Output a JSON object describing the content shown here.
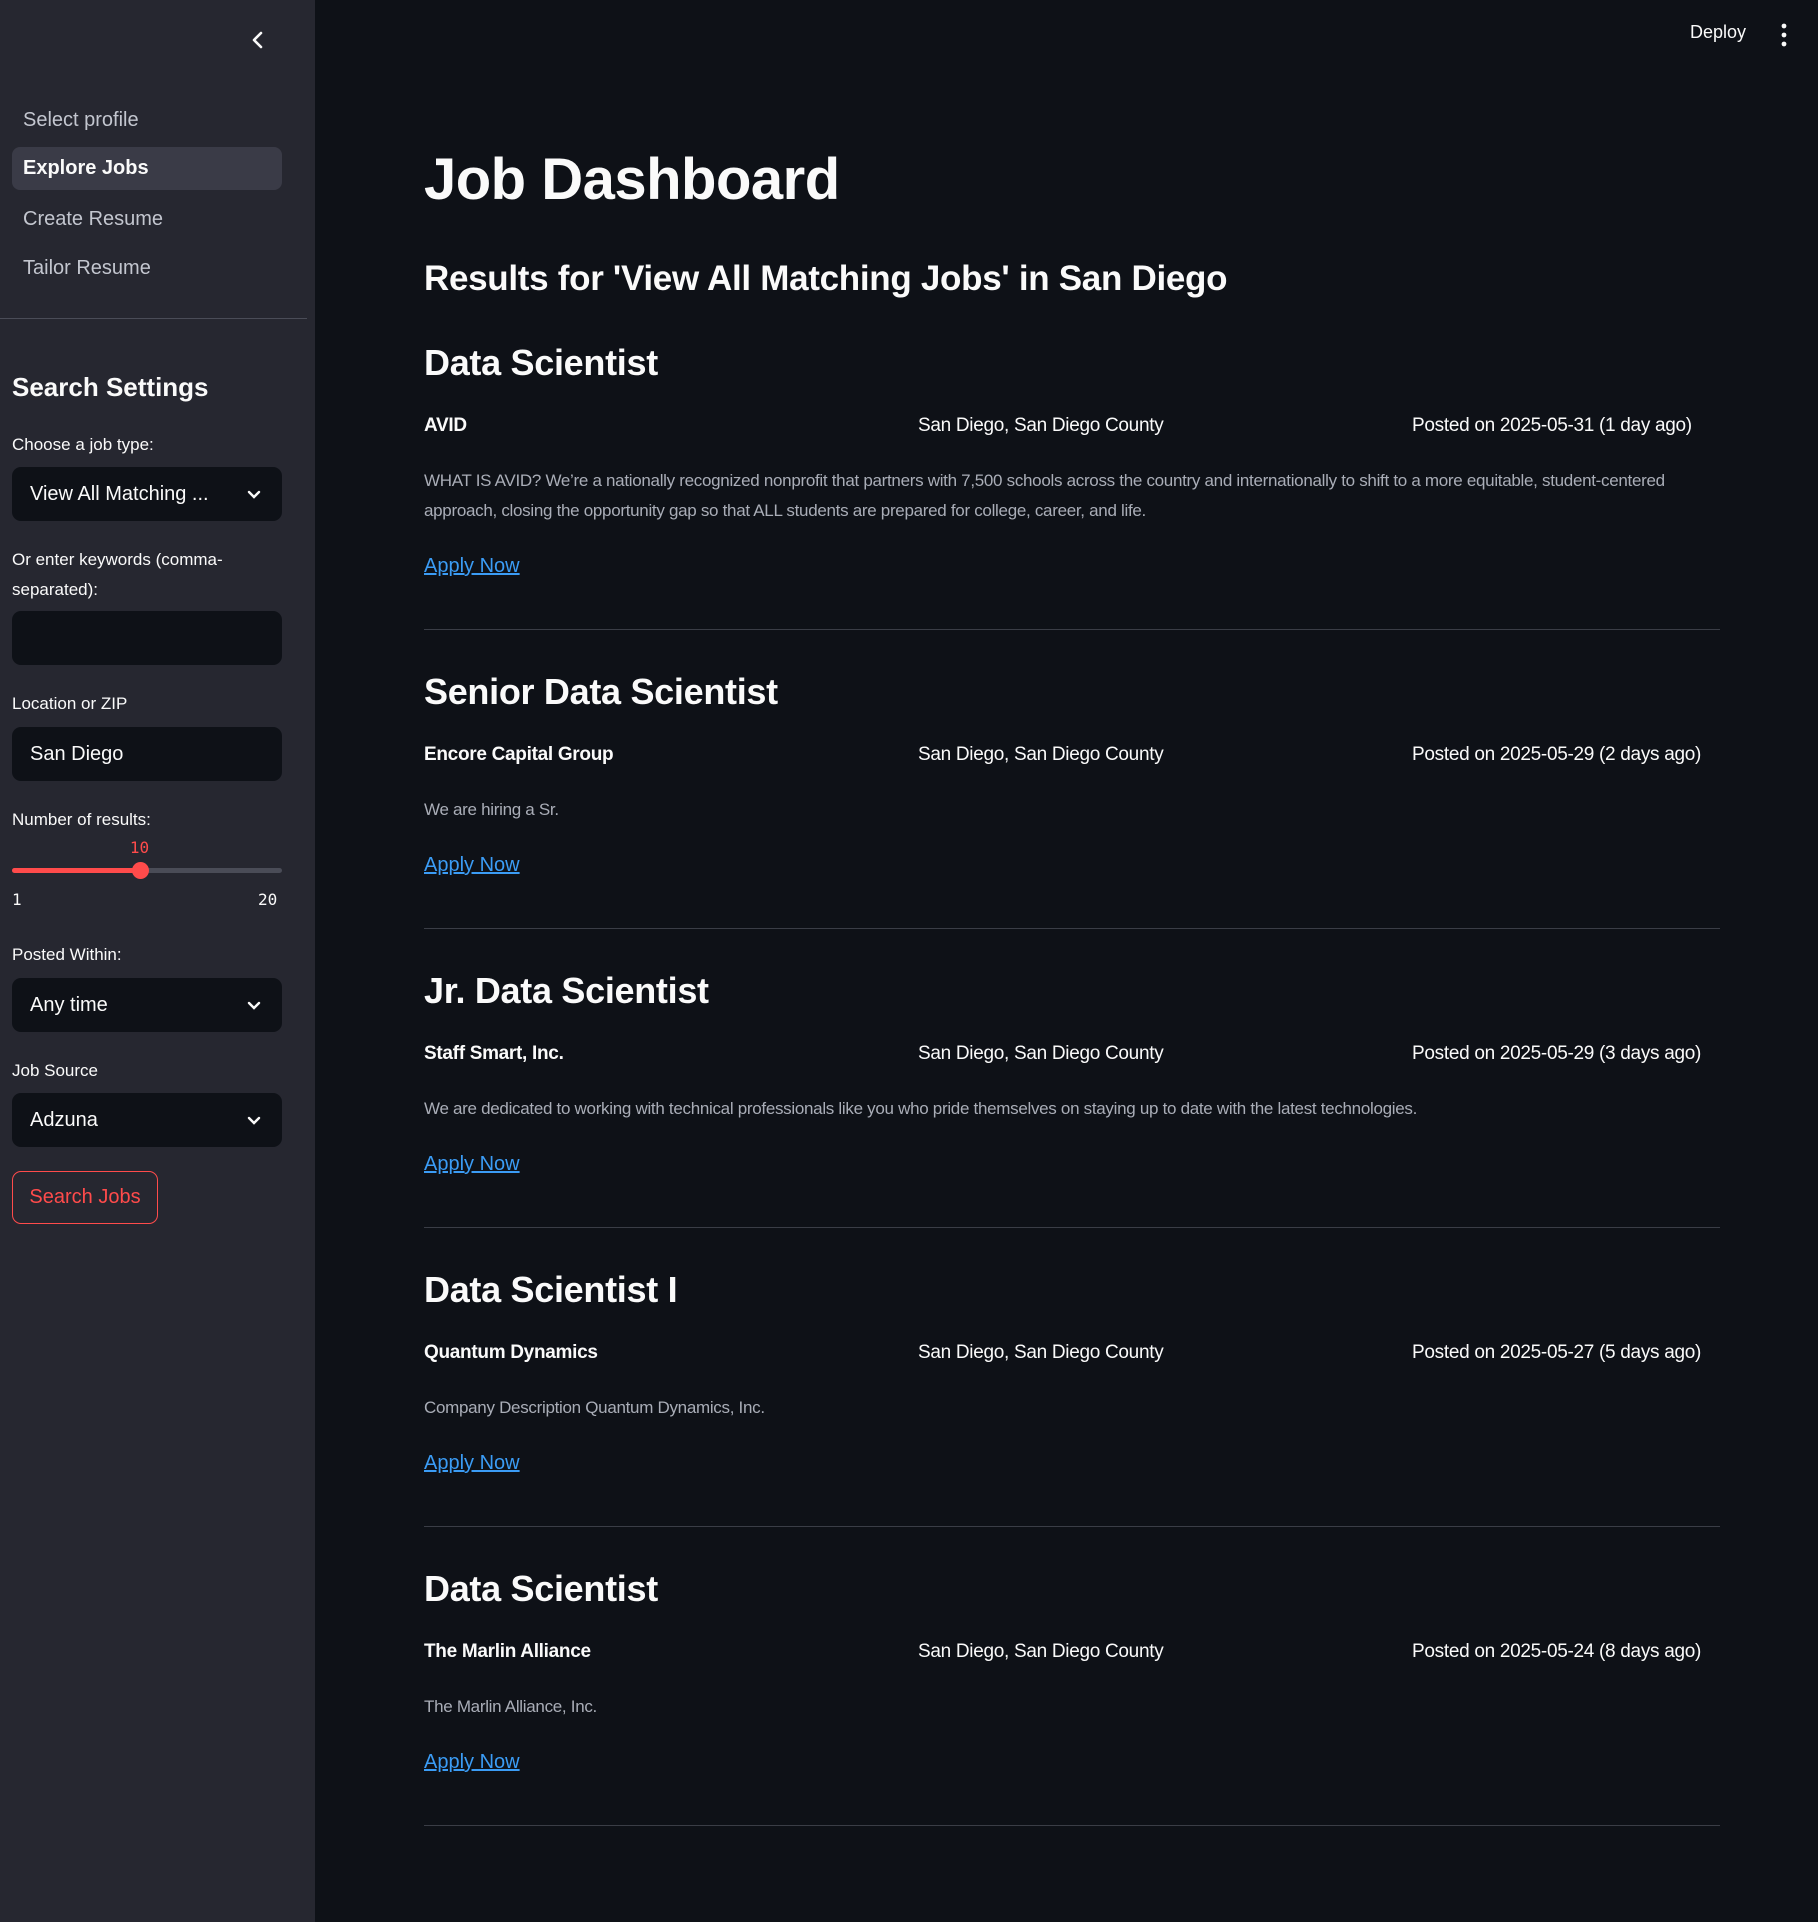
{
  "sidebar": {
    "nav": [
      {
        "label": "Select profile",
        "active": false
      },
      {
        "label": "Explore Jobs",
        "active": true
      },
      {
        "label": "Create Resume",
        "active": false
      },
      {
        "label": "Tailor Resume",
        "active": false
      }
    ],
    "heading": "Search Settings",
    "job_type": {
      "label": "Choose a job type:",
      "value": "View All Matching ..."
    },
    "keywords": {
      "label": "Or enter keywords (comma-separated):",
      "value": "",
      "placeholder": ""
    },
    "location": {
      "label": "Location or ZIP",
      "value": "San Diego"
    },
    "results": {
      "label": "Number of results:",
      "value": "10",
      "min": "1",
      "max": "20"
    },
    "posted_within": {
      "label": "Posted Within:",
      "value": "Any time"
    },
    "job_source": {
      "label": "Job Source",
      "value": "Adzuna"
    },
    "search_button": "Search Jobs",
    "accent_color": "#ff4b4b"
  },
  "header": {
    "deploy": "Deploy"
  },
  "main": {
    "title": "Job Dashboard",
    "subtitle": "Results for 'View All Matching Jobs' in San Diego",
    "apply_label": "Apply Now",
    "jobs": [
      {
        "title": "Data Scientist",
        "company": "AVID",
        "location": "San Diego, San Diego County",
        "posted": "Posted on 2025-05-31 (1 day ago)",
        "description": "WHAT IS AVID? We’re a nationally recognized nonprofit that partners with 7,500 schools across the country and internationally to shift to a more equitable, student-centered approach, closing the opportunity gap so that ALL students are prepared for college, career, and life."
      },
      {
        "title": "Senior Data Scientist",
        "company": "Encore Capital Group",
        "location": "San Diego, San Diego County",
        "posted": "Posted on 2025-05-29 (2 days ago)",
        "description": "We are hiring a Sr."
      },
      {
        "title": "Jr. Data Scientist",
        "company": "Staff Smart, Inc.",
        "location": "San Diego, San Diego County",
        "posted": "Posted on 2025-05-29 (3 days ago)",
        "description": "We are dedicated to working with technical professionals like you who pride themselves on staying up to date with the latest technologies."
      },
      {
        "title": "Data Scientist I",
        "company": "Quantum Dynamics",
        "location": "San Diego, San Diego County",
        "posted": "Posted on 2025-05-27 (5 days ago)",
        "description": "Company Description Quantum Dynamics, Inc."
      },
      {
        "title": "Data Scientist",
        "company": "The Marlin Alliance",
        "location": "San Diego, San Diego County",
        "posted": "Posted on 2025-05-24 (8 days ago)",
        "description": "The Marlin Alliance, Inc."
      }
    ]
  }
}
